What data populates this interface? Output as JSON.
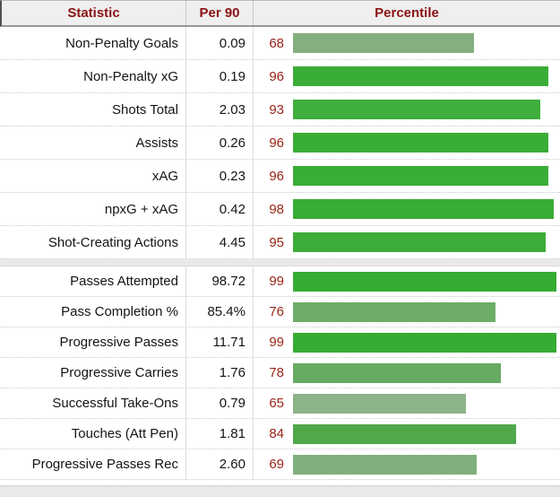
{
  "header": {
    "statistic_label": "Statistic",
    "per90_label": "Per 90",
    "percentile_label": "Percentile"
  },
  "colors": {
    "header_text": "#8b1212",
    "header_background": "#efefef",
    "percentile_number_text": "#992417",
    "section_separator": "#e9e9e9",
    "bright_green": "#37ac34",
    "pale_green": "#8cb488"
  },
  "chart_data": {
    "type": "table",
    "title": "",
    "columns": [
      "Statistic",
      "Per 90",
      "Percentile"
    ],
    "bar_axis": {
      "min": 0,
      "max": 100
    },
    "legend": "bar width and green saturation encode percentile (0-100)",
    "sections": [
      {
        "rows": [
          {
            "stat": "Non-Penalty Goals",
            "per90": "0.09",
            "percentile": 68,
            "bar_color": "#83b07e"
          },
          {
            "stat": "Non-Penalty xG",
            "per90": "0.19",
            "percentile": 96,
            "bar_color": "#3aad37"
          },
          {
            "stat": "Shots Total",
            "per90": "2.03",
            "percentile": 93,
            "bar_color": "#40ae3d"
          },
          {
            "stat": "Assists",
            "per90": "0.26",
            "percentile": 96,
            "bar_color": "#3aad37"
          },
          {
            "stat": "xAG",
            "per90": "0.23",
            "percentile": 96,
            "bar_color": "#3aad37"
          },
          {
            "stat": "npxG + xAG",
            "per90": "0.42",
            "percentile": 98,
            "bar_color": "#38ac35"
          },
          {
            "stat": "Shot-Creating Actions",
            "per90": "4.45",
            "percentile": 95,
            "bar_color": "#3cad39"
          }
        ]
      },
      {
        "rows": [
          {
            "stat": "Passes Attempted",
            "per90": "98.72",
            "percentile": 99,
            "bar_color": "#37ac34"
          },
          {
            "stat": "Pass Completion %",
            "per90": "85.4%",
            "percentile": 76,
            "bar_color": "#6ead68"
          },
          {
            "stat": "Progressive Passes",
            "per90": "11.71",
            "percentile": 99,
            "bar_color": "#37ac34"
          },
          {
            "stat": "Progressive Carries",
            "per90": "1.76",
            "percentile": 78,
            "bar_color": "#66ab61"
          },
          {
            "stat": "Successful Take-Ons",
            "per90": "0.79",
            "percentile": 65,
            "bar_color": "#8cb488"
          },
          {
            "stat": "Touches (Att Pen)",
            "per90": "1.81",
            "percentile": 84,
            "bar_color": "#50a84b"
          },
          {
            "stat": "Progressive Passes Rec",
            "per90": "2.60",
            "percentile": 69,
            "bar_color": "#80b07c"
          }
        ]
      }
    ]
  }
}
